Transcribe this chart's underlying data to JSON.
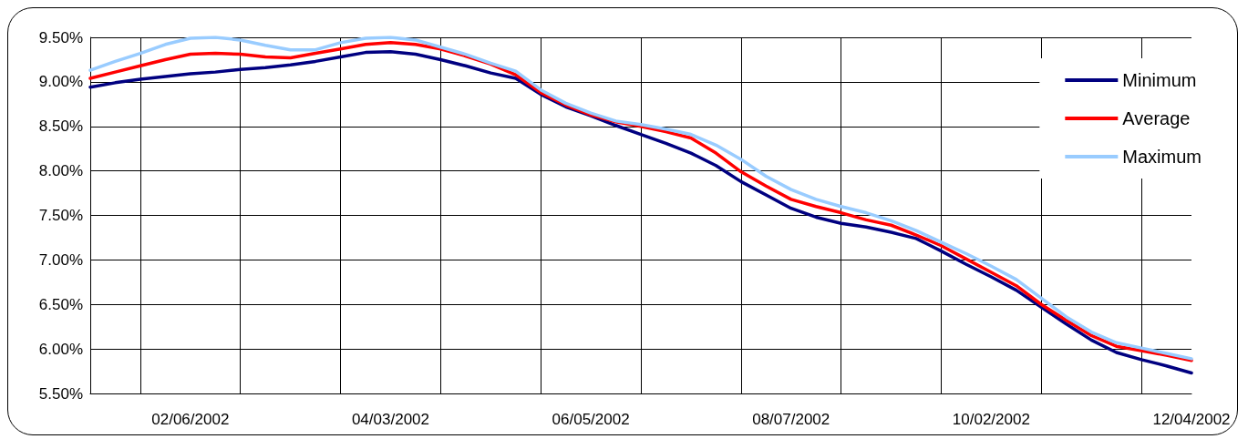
{
  "chart_data": {
    "type": "line",
    "categories": [
      null,
      null,
      null,
      null,
      "02/06/2002",
      null,
      null,
      null,
      null,
      null,
      null,
      null,
      "04/03/2002",
      null,
      null,
      null,
      null,
      null,
      null,
      null,
      "06/05/2002",
      null,
      null,
      null,
      null,
      null,
      null,
      null,
      "08/07/2002",
      null,
      null,
      null,
      null,
      null,
      null,
      null,
      "10/02/2002",
      null,
      null,
      null,
      null,
      null,
      null,
      null,
      "12/04/2002"
    ],
    "series": [
      {
        "name": "Minimum",
        "color": "#000080",
        "values": [
          8.94,
          8.99,
          9.03,
          9.06,
          9.09,
          9.11,
          9.14,
          9.16,
          9.19,
          9.23,
          9.28,
          9.33,
          9.34,
          9.31,
          9.25,
          9.18,
          9.1,
          9.04,
          8.86,
          8.72,
          8.62,
          8.51,
          8.41,
          8.31,
          8.2,
          8.06,
          7.88,
          7.73,
          7.58,
          7.48,
          7.41,
          7.37,
          7.31,
          7.24,
          7.1,
          6.95,
          6.81,
          6.66,
          6.47,
          6.28,
          6.1,
          5.96,
          5.88,
          5.81,
          5.73
        ]
      },
      {
        "name": "Average",
        "color": "#ff0000",
        "values": [
          9.04,
          9.11,
          9.18,
          9.25,
          9.31,
          9.32,
          9.31,
          9.28,
          9.27,
          9.32,
          9.37,
          9.42,
          9.44,
          9.42,
          9.37,
          9.29,
          9.2,
          9.08,
          8.88,
          8.74,
          8.63,
          8.55,
          8.5,
          8.44,
          8.37,
          8.2,
          7.99,
          7.83,
          7.68,
          7.6,
          7.53,
          7.45,
          7.39,
          7.28,
          7.16,
          7.01,
          6.86,
          6.71,
          6.5,
          6.32,
          6.15,
          6.03,
          5.98,
          5.93,
          5.87
        ]
      },
      {
        "name": "Maximum",
        "color": "#99ccff",
        "values": [
          9.13,
          9.23,
          9.32,
          9.42,
          9.49,
          9.5,
          9.47,
          9.41,
          9.36,
          9.36,
          9.44,
          9.49,
          9.5,
          9.47,
          9.39,
          9.31,
          9.21,
          9.12,
          8.91,
          8.76,
          8.65,
          8.56,
          8.52,
          8.47,
          8.41,
          8.29,
          8.13,
          7.94,
          7.79,
          7.68,
          7.6,
          7.53,
          7.44,
          7.33,
          7.2,
          7.07,
          6.93,
          6.78,
          6.57,
          6.36,
          6.19,
          6.07,
          6.01,
          5.95,
          5.89
        ]
      }
    ],
    "ylim": [
      5.5,
      9.5
    ],
    "yticks": [
      {
        "value": 5.5,
        "label": "5.50%"
      },
      {
        "value": 6,
        "label": "6.00%"
      },
      {
        "value": 6.5,
        "label": "6.50%"
      },
      {
        "value": 7,
        "label": "7.00%"
      },
      {
        "value": 7.5,
        "label": "7.50%"
      },
      {
        "value": 8,
        "label": "8.00%"
      },
      {
        "value": 8.5,
        "label": "8.50%"
      },
      {
        "value": 9,
        "label": "9.00%"
      },
      {
        "value": 9.5,
        "label": "9.50%"
      }
    ],
    "grid": true,
    "legend": "top right",
    "marker": "none",
    "line_style": "solid"
  }
}
